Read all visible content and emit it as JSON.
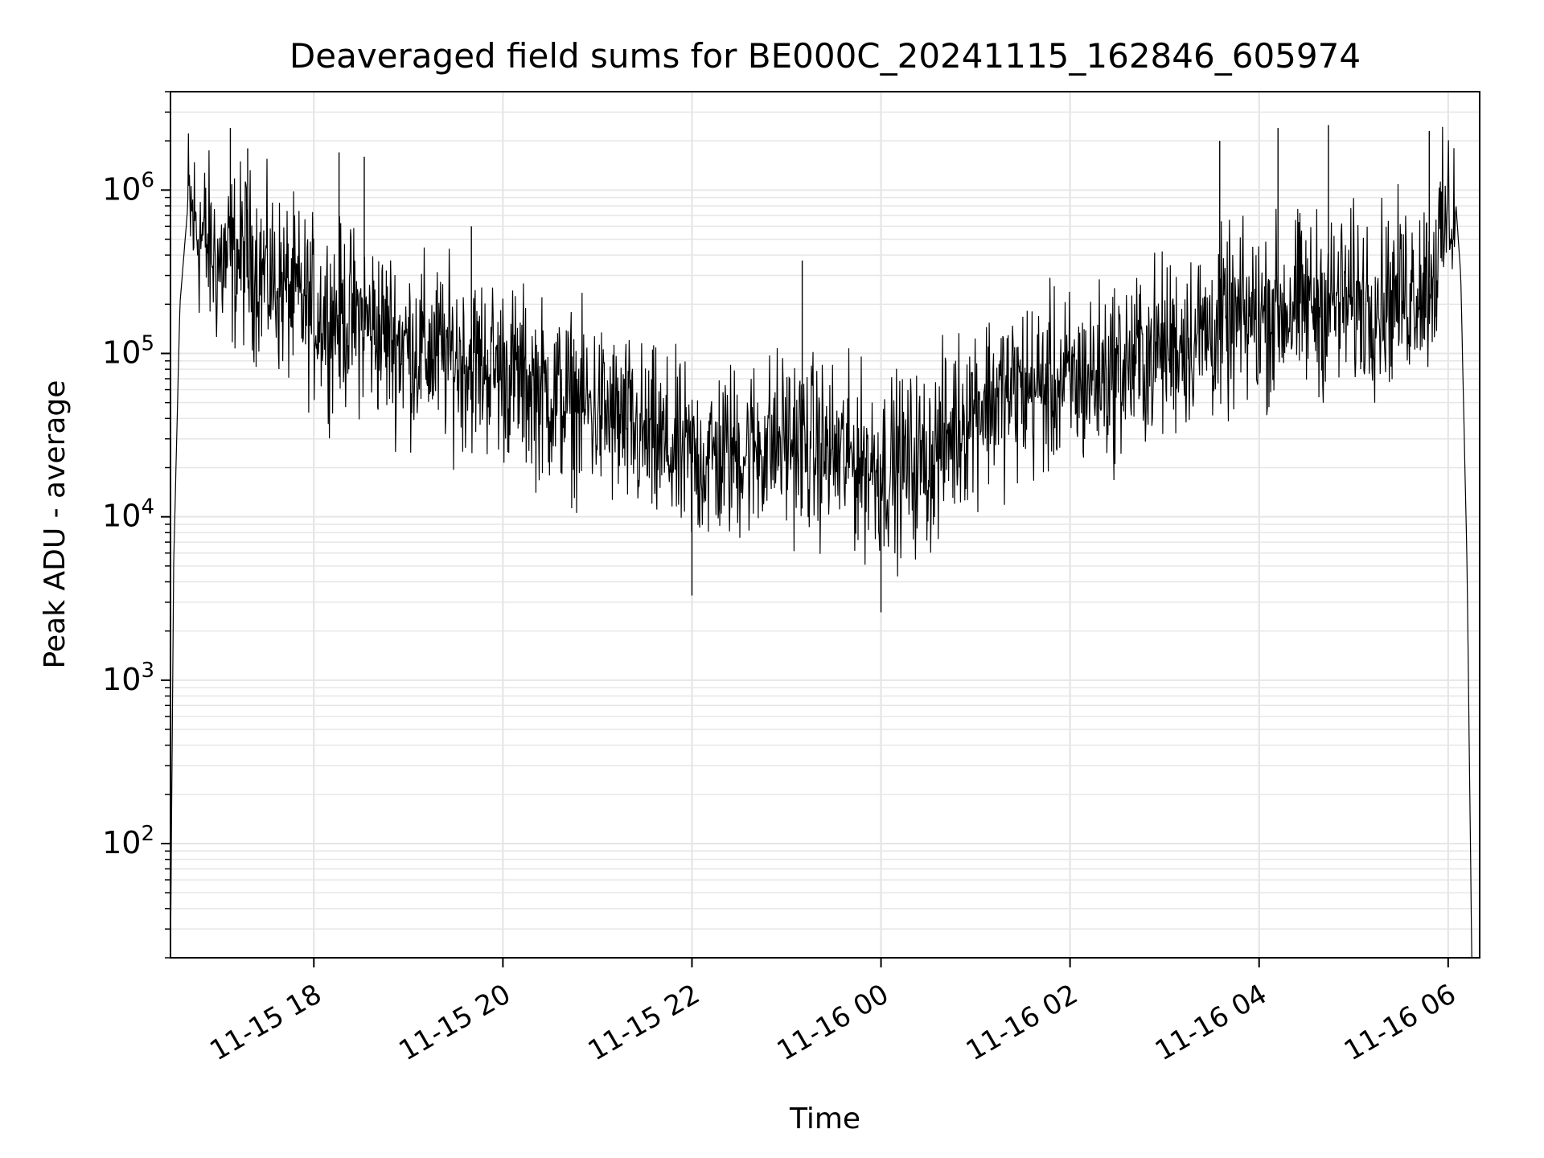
{
  "chart_data": {
    "type": "line",
    "title": "Deaveraged field sums for BE000C_20241115_162846_605974",
    "xlabel": "Time",
    "ylabel": "Peak ADU - average",
    "yscale": "log",
    "ylim": [
      20,
      4000000
    ],
    "xlim": [
      "2024-11-15 16:29",
      "2024-11-16 06:20"
    ],
    "grid": "major and minor, light gray",
    "line_color": "#000000",
    "x_ticks": [
      {
        "label": "11-15 18",
        "time": "2024-11-15 18:00"
      },
      {
        "label": "11-15 20",
        "time": "2024-11-15 20:00"
      },
      {
        "label": "11-15 22",
        "time": "2024-11-15 22:00"
      },
      {
        "label": "11-16 00",
        "time": "2024-11-16 00:00"
      },
      {
        "label": "11-16 02",
        "time": "2024-11-16 02:00"
      },
      {
        "label": "11-16 04",
        "time": "2024-11-16 04:00"
      },
      {
        "label": "11-16 06",
        "time": "2024-11-16 06:00"
      }
    ],
    "y_ticks": [
      {
        "base": "10",
        "exp": "2",
        "value": 100
      },
      {
        "base": "10",
        "exp": "3",
        "value": 1000
      },
      {
        "base": "10",
        "exp": "4",
        "value": 10000
      },
      {
        "base": "10",
        "exp": "5",
        "value": 100000
      },
      {
        "base": "10",
        "exp": "6",
        "value": 1000000
      }
    ],
    "series": [
      {
        "points": [
          {
            "t": "2024-11-15 16:29",
            "v": 20
          },
          {
            "t": "2024-11-15 16:31",
            "v": 5000
          },
          {
            "t": "2024-11-15 16:35",
            "v": 200000
          },
          {
            "t": "2024-11-15 16:40",
            "v": 800000
          },
          {
            "t": "2024-11-15 16:45",
            "v": 600000
          },
          {
            "t": "2024-11-15 17:00",
            "v": 350000
          },
          {
            "t": "2024-11-15 17:15",
            "v": 400000
          },
          {
            "t": "2024-11-15 17:30",
            "v": 300000
          },
          {
            "t": "2024-11-15 18:00",
            "v": 180000
          },
          {
            "t": "2024-11-15 18:30",
            "v": 160000
          },
          {
            "t": "2024-11-15 19:00",
            "v": 110000
          },
          {
            "t": "2024-11-15 19:30",
            "v": 95000
          },
          {
            "t": "2024-11-15 20:00",
            "v": 80000
          },
          {
            "t": "2024-11-15 20:30",
            "v": 55000
          },
          {
            "t": "2024-11-15 21:00",
            "v": 45000
          },
          {
            "t": "2024-11-15 21:30",
            "v": 30000
          },
          {
            "t": "2024-11-15 22:00",
            "v": 22000
          },
          {
            "t": "2024-11-15 22:30",
            "v": 25000
          },
          {
            "t": "2024-11-15 23:00",
            "v": 30000
          },
          {
            "t": "2024-11-15 23:30",
            "v": 24000
          },
          {
            "t": "2024-11-16 00:00",
            "v": 20000
          },
          {
            "t": "2024-11-16 00:30",
            "v": 22000
          },
          {
            "t": "2024-11-16 01:00",
            "v": 50000
          },
          {
            "t": "2024-11-16 01:30",
            "v": 60000
          },
          {
            "t": "2024-11-16 02:00",
            "v": 65000
          },
          {
            "t": "2024-11-16 02:30",
            "v": 80000
          },
          {
            "t": "2024-11-16 03:00",
            "v": 110000
          },
          {
            "t": "2024-11-16 03:30",
            "v": 140000
          },
          {
            "t": "2024-11-16 04:00",
            "v": 170000
          },
          {
            "t": "2024-11-16 04:30",
            "v": 200000
          },
          {
            "t": "2024-11-16 05:00",
            "v": 210000
          },
          {
            "t": "2024-11-16 05:30",
            "v": 230000
          },
          {
            "t": "2024-11-16 05:50",
            "v": 300000
          },
          {
            "t": "2024-11-16 06:00",
            "v": 700000
          },
          {
            "t": "2024-11-16 06:05",
            "v": 800000
          },
          {
            "t": "2024-11-16 06:08",
            "v": 300000
          },
          {
            "t": "2024-11-16 06:12",
            "v": 5000
          },
          {
            "t": "2024-11-16 06:15",
            "v": 20
          }
        ],
        "spikes": [
          {
            "t": "2024-11-15 17:07",
            "v": 2400000
          },
          {
            "t": "2024-11-15 17:18",
            "v": 1800000
          },
          {
            "t": "2024-11-15 18:16",
            "v": 1700000
          },
          {
            "t": "2024-11-15 18:32",
            "v": 1600000
          },
          {
            "t": "2024-11-15 19:40",
            "v": 600000
          },
          {
            "t": "2024-11-15 23:10",
            "v": 370000
          },
          {
            "t": "2024-11-16 00:00",
            "v": 2600
          },
          {
            "t": "2024-11-15 22:00",
            "v": 3300
          },
          {
            "t": "2024-11-16 03:35",
            "v": 2000000
          },
          {
            "t": "2024-11-16 04:12",
            "v": 2400000
          },
          {
            "t": "2024-11-16 04:44",
            "v": 2500000
          },
          {
            "t": "2024-11-16 05:48",
            "v": 2300000
          }
        ],
        "noise_band": "data fluctuates roughly one decade around the trend; individual points span about 3x10^3 to 2.5x10^6"
      }
    ]
  }
}
